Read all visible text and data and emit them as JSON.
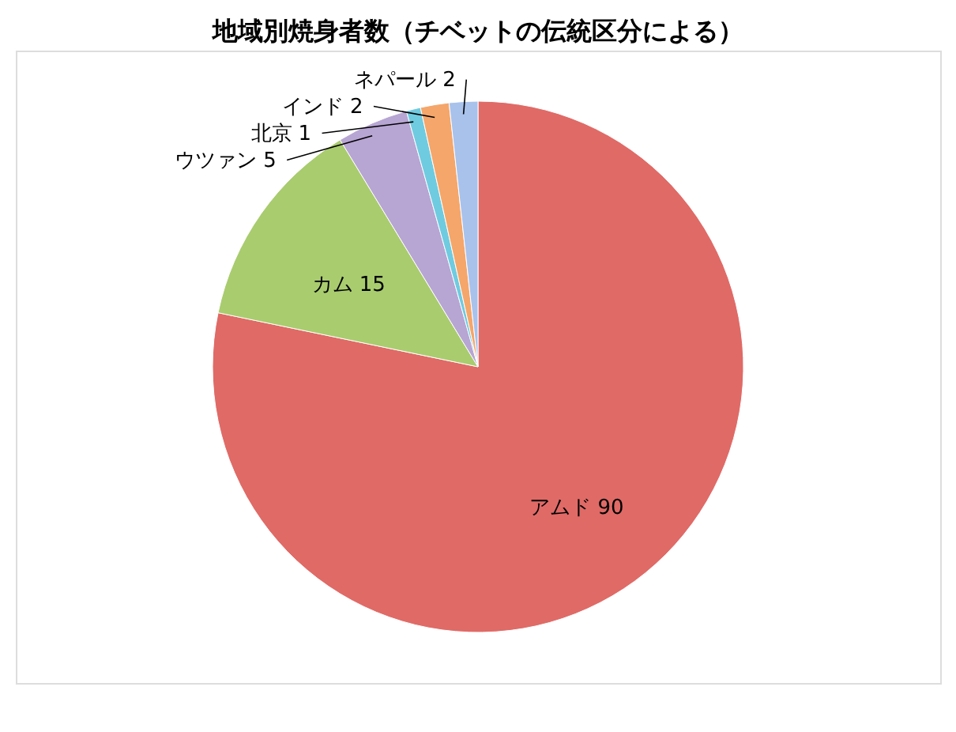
{
  "chart_data": {
    "type": "pie",
    "title": "地域別焼身者数（チベットの伝統区分による）",
    "categories": [
      "アムド",
      "カム",
      "ウツァン",
      "北京",
      "インド",
      "ネパール"
    ],
    "values": [
      90,
      15,
      5,
      1,
      2,
      2
    ],
    "colors": [
      "#e06a66",
      "#a9cc6e",
      "#b7a5d3",
      "#6fcbe0",
      "#f5a66a",
      "#a8c2ec"
    ],
    "data_labels": true,
    "legend": false
  }
}
